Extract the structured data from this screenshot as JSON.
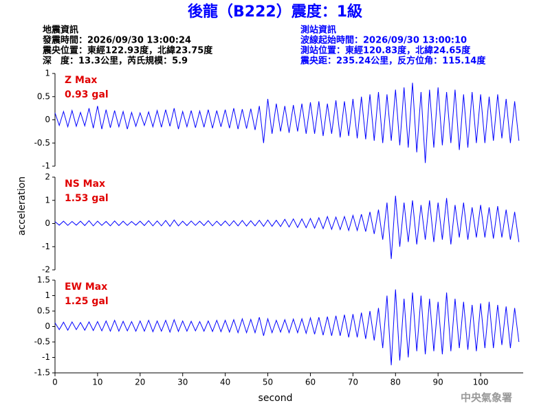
{
  "title": "後龍（B222）震度：1級",
  "left_info": [
    "地震資訊",
    "發震時間：2026/09/30 13:00:24",
    "震央位置：東經122.93度，北緯23.75度",
    "深　度：13.3公里，芮氏規模：5.9"
  ],
  "right_info": [
    "測站資訊",
    "波線起始時間：2026/09/30 13:00:10",
    "測站位置：東經120.83度，北緯24.65度",
    "震央距：235.24公里，反方位角：115.14度"
  ],
  "ylabel": "acceleration",
  "footer": "中央氣象署",
  "chart_data": [
    {
      "type": "line",
      "annotations": [
        "Z Max",
        "0.93 gal"
      ],
      "xlim": [
        0,
        110
      ],
      "ylim": [
        -1,
        1
      ],
      "yticks": [
        -1,
        -0.5,
        0,
        0.5,
        1
      ],
      "x": [
        0,
        1,
        2,
        3,
        4,
        5,
        6,
        7,
        8,
        9,
        10,
        11,
        12,
        13,
        14,
        15,
        16,
        17,
        18,
        19,
        20,
        21,
        22,
        23,
        24,
        25,
        26,
        27,
        28,
        29,
        30,
        31,
        32,
        33,
        34,
        35,
        36,
        37,
        38,
        39,
        40,
        41,
        42,
        43,
        44,
        45,
        46,
        47,
        48,
        49,
        50,
        51,
        52,
        53,
        54,
        55,
        56,
        57,
        58,
        59,
        60,
        61,
        62,
        63,
        64,
        65,
        66,
        67,
        68,
        69,
        70,
        71,
        72,
        73,
        74,
        75,
        76,
        77,
        78,
        79,
        80,
        81,
        82,
        83,
        84,
        85,
        86,
        87,
        88,
        89,
        90,
        91,
        92,
        93,
        94,
        95,
        96,
        97,
        98,
        99,
        100,
        101,
        102,
        103,
        104,
        105,
        106,
        107,
        108,
        109
      ],
      "series": [
        {
          "color": "#0000ff",
          "values": [
            0.15,
            -0.12,
            0.18,
            -0.15,
            0.2,
            -0.14,
            0.16,
            -0.13,
            0.25,
            -0.18,
            0.3,
            -0.2,
            0.22,
            -0.17,
            0.2,
            -0.15,
            0.18,
            -0.2,
            0.16,
            -0.14,
            0.15,
            -0.12,
            0.17,
            -0.15,
            0.2,
            -0.16,
            0.22,
            -0.14,
            0.25,
            -0.2,
            0.18,
            -0.15,
            0.2,
            -0.17,
            0.19,
            -0.16,
            0.22,
            -0.18,
            0.2,
            -0.15,
            0.22,
            -0.18,
            0.25,
            -0.2,
            0.23,
            -0.19,
            0.24,
            -0.22,
            0.3,
            -0.5,
            0.45,
            -0.3,
            0.35,
            -0.25,
            0.3,
            -0.28,
            0.32,
            -0.25,
            0.35,
            -0.3,
            0.38,
            -0.3,
            0.4,
            -0.35,
            0.35,
            -0.3,
            0.42,
            -0.38,
            0.4,
            -0.35,
            0.45,
            -0.4,
            0.5,
            -0.42,
            0.55,
            -0.45,
            0.6,
            -0.5,
            0.55,
            -0.45,
            0.65,
            -0.55,
            0.7,
            -0.6,
            0.8,
            -0.7,
            0.6,
            -0.93,
            0.65,
            -0.6,
            0.7,
            -0.55,
            0.6,
            -0.5,
            0.65,
            -0.65,
            0.55,
            -0.6,
            0.6,
            -0.5,
            0.55,
            -0.5,
            0.5,
            -0.45,
            0.55,
            -0.4,
            0.45,
            -0.5,
            0.4,
            -0.45
          ]
        }
      ]
    },
    {
      "type": "line",
      "annotations": [
        "NS Max",
        "1.53 gal"
      ],
      "xlim": [
        0,
        110
      ],
      "ylim": [
        -2,
        2
      ],
      "yticks": [
        -2,
        -1,
        0,
        1,
        2
      ],
      "x": [
        0,
        1,
        2,
        3,
        4,
        5,
        6,
        7,
        8,
        9,
        10,
        11,
        12,
        13,
        14,
        15,
        16,
        17,
        18,
        19,
        20,
        21,
        22,
        23,
        24,
        25,
        26,
        27,
        28,
        29,
        30,
        31,
        32,
        33,
        34,
        35,
        36,
        37,
        38,
        39,
        40,
        41,
        42,
        43,
        44,
        45,
        46,
        47,
        48,
        49,
        50,
        51,
        52,
        53,
        54,
        55,
        56,
        57,
        58,
        59,
        60,
        61,
        62,
        63,
        64,
        65,
        66,
        67,
        68,
        69,
        70,
        71,
        72,
        73,
        74,
        75,
        76,
        77,
        78,
        79,
        80,
        81,
        82,
        83,
        84,
        85,
        86,
        87,
        88,
        89,
        90,
        91,
        92,
        93,
        94,
        95,
        96,
        97,
        98,
        99,
        100,
        101,
        102,
        103,
        104,
        105,
        106,
        107,
        108,
        109
      ],
      "series": [
        {
          "color": "#0000ff",
          "values": [
            0.08,
            -0.07,
            0.1,
            -0.08,
            0.09,
            -0.07,
            0.1,
            -0.09,
            0.12,
            -0.1,
            0.1,
            -0.08,
            0.09,
            -0.1,
            0.11,
            -0.09,
            0.1,
            -0.08,
            0.09,
            -0.07,
            0.1,
            -0.09,
            0.12,
            -0.1,
            0.11,
            -0.1,
            0.13,
            -0.12,
            0.15,
            -0.1,
            0.1,
            -0.09,
            0.11,
            -0.08,
            0.1,
            -0.09,
            0.12,
            -0.1,
            0.1,
            -0.09,
            0.11,
            -0.1,
            0.12,
            -0.1,
            0.13,
            -0.11,
            0.12,
            -0.1,
            0.14,
            -0.12,
            0.15,
            -0.12,
            0.14,
            -0.13,
            0.18,
            -0.15,
            0.2,
            -0.17,
            0.2,
            -0.18,
            0.22,
            -0.2,
            0.25,
            -0.22,
            0.3,
            -0.25,
            0.28,
            -0.26,
            0.3,
            -0.3,
            0.35,
            -0.3,
            0.4,
            -0.35,
            0.5,
            -0.45,
            0.6,
            -0.7,
            0.9,
            -1.53,
            1.2,
            -1.0,
            0.9,
            -0.8,
            1.0,
            -0.9,
            0.8,
            -0.7,
            1.0,
            -0.8,
            0.9,
            -0.7,
            1.1,
            -0.9,
            0.8,
            -0.6,
            0.9,
            -0.7,
            0.7,
            -0.6,
            0.8,
            -0.6,
            0.7,
            -0.65,
            0.75,
            -0.6,
            0.6,
            -0.7,
            0.5,
            -0.8
          ]
        }
      ]
    },
    {
      "type": "line",
      "annotations": [
        "EW Max",
        "1.25 gal"
      ],
      "xlim": [
        0,
        110
      ],
      "ylim": [
        -1.5,
        1.5
      ],
      "yticks": [
        -1.5,
        -1,
        -0.5,
        0,
        0.5,
        1,
        1.5
      ],
      "xticks": [
        0,
        10,
        20,
        30,
        40,
        50,
        60,
        70,
        80,
        90,
        100
      ],
      "xlabel": "second",
      "x": [
        0,
        1,
        2,
        3,
        4,
        5,
        6,
        7,
        8,
        9,
        10,
        11,
        12,
        13,
        14,
        15,
        16,
        17,
        18,
        19,
        20,
        21,
        22,
        23,
        24,
        25,
        26,
        27,
        28,
        29,
        30,
        31,
        32,
        33,
        34,
        35,
        36,
        37,
        38,
        39,
        40,
        41,
        42,
        43,
        44,
        45,
        46,
        47,
        48,
        49,
        50,
        51,
        52,
        53,
        54,
        55,
        56,
        57,
        58,
        59,
        60,
        61,
        62,
        63,
        64,
        65,
        66,
        67,
        68,
        69,
        70,
        71,
        72,
        73,
        74,
        75,
        76,
        77,
        78,
        79,
        80,
        81,
        82,
        83,
        84,
        85,
        86,
        87,
        88,
        89,
        90,
        91,
        92,
        93,
        94,
        95,
        96,
        97,
        98,
        99,
        100,
        101,
        102,
        103,
        104,
        105,
        106,
        107,
        108,
        109
      ],
      "series": [
        {
          "color": "#0000ff",
          "values": [
            0.12,
            -0.1,
            0.14,
            -0.12,
            0.15,
            -0.1,
            0.13,
            -0.12,
            0.15,
            -0.13,
            0.16,
            -0.14,
            0.18,
            -0.15,
            0.2,
            -0.15,
            0.17,
            -0.14,
            0.16,
            -0.15,
            0.18,
            -0.15,
            0.2,
            -0.17,
            0.18,
            -0.15,
            0.2,
            -0.18,
            0.22,
            -0.16,
            0.18,
            -0.15,
            0.17,
            -0.14,
            0.16,
            -0.15,
            0.18,
            -0.16,
            0.2,
            -0.17,
            0.2,
            -0.18,
            0.22,
            -0.2,
            0.25,
            -0.2,
            0.23,
            -0.2,
            0.3,
            -0.3,
            0.25,
            -0.2,
            0.2,
            -0.18,
            0.22,
            -0.2,
            0.24,
            -0.2,
            0.25,
            -0.22,
            0.28,
            -0.25,
            0.3,
            -0.28,
            0.32,
            -0.3,
            0.35,
            -0.3,
            0.38,
            -0.35,
            0.4,
            -0.35,
            0.45,
            -0.4,
            0.5,
            -0.45,
            0.6,
            -0.7,
            1.0,
            -1.25,
            1.2,
            -1.1,
            0.9,
            -1.0,
            1.1,
            -0.8,
            1.0,
            -0.9,
            0.9,
            -0.8,
            0.8,
            -0.9,
            1.1,
            -0.8,
            0.9,
            -0.7,
            0.8,
            -0.75,
            0.7,
            -0.8,
            0.75,
            -0.7,
            0.8,
            -0.7,
            0.7,
            -0.6,
            0.65,
            -0.7,
            0.6,
            -0.5
          ]
        }
      ]
    }
  ]
}
